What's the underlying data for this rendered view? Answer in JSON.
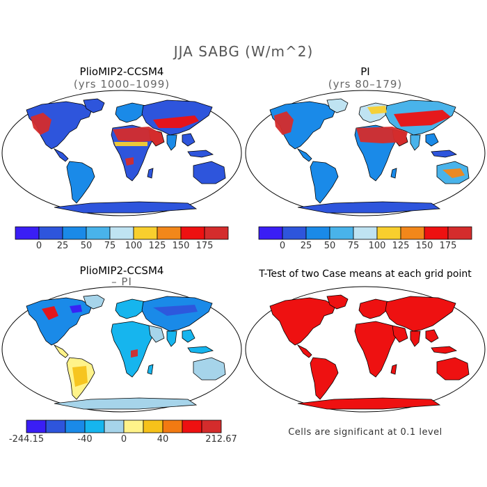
{
  "title": "JJA SABG (W/m^2)",
  "panels": [
    {
      "id": "pliomip2",
      "title": "PlioMIP2-CCSM4",
      "subtitle": "(yrs 1000–1099)"
    },
    {
      "id": "pi",
      "title": "PI",
      "subtitle": "(yrs 80–179)"
    },
    {
      "id": "diff",
      "title": "PlioMIP2-CCSM4",
      "subtitle": "– PI"
    },
    {
      "id": "ttest",
      "title": "T-Test of two Case means at each grid point",
      "subtitle": ""
    }
  ],
  "colorbars": {
    "absolute": {
      "colors": [
        "#3a1ef5",
        "#2e55dc",
        "#1a8ae8",
        "#49b3ea",
        "#bfe3f2",
        "#f8cf2e",
        "#f2871a",
        "#ee1111",
        "#d42c2c"
      ],
      "labels": [
        "0",
        "25",
        "50",
        "75",
        "100",
        "125",
        "150",
        "175"
      ]
    },
    "difference": {
      "colors": [
        "#3a1ef5",
        "#2e55dc",
        "#1a8ae8",
        "#16b5ee",
        "#a6d4ea",
        "#fff38a",
        "#f6c21a",
        "#f27a12",
        "#ee1111",
        "#d42c2c"
      ],
      "labels": [
        "-244.15",
        "-40",
        "0",
        "40",
        "212.67"
      ]
    }
  },
  "note": "Cells are significant at 0.1 level"
}
